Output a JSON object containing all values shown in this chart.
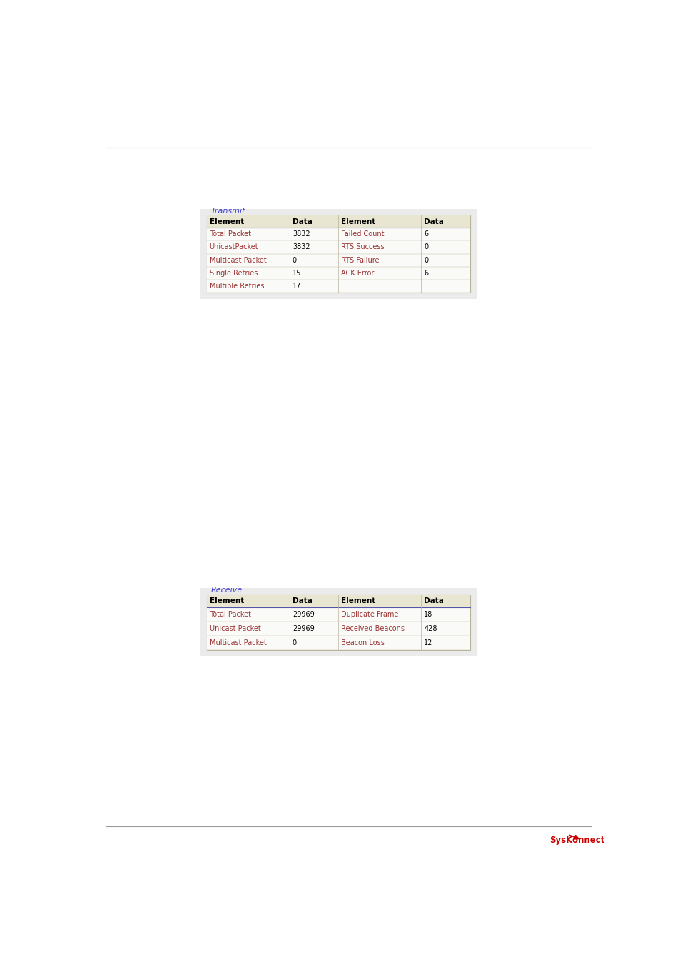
{
  "page_bg": "#ffffff",
  "panel_bg": "#ebebeb",
  "table_header_bg": "#e8e5d0",
  "table_row_bg": "#fafaf8",
  "border_color": "#b8b49a",
  "header_line_color": "#5555aa",
  "group_label_color": "#4444cc",
  "element_color": "#993333",
  "data_color": "#000000",
  "top_line_color": "#aaaaaa",
  "bottom_line_color": "#999999",
  "logo_color": "#cc0000",
  "transmit_title": "Transmit",
  "transmit_left_elements": [
    "Total Packet",
    "UnicastPacket",
    "Multicast Packet",
    "Single Retries",
    "Multiple Retries"
  ],
  "transmit_left_data": [
    "3832",
    "3832",
    "0",
    "15",
    "17"
  ],
  "transmit_right_elements": [
    "Failed Count",
    "RTS Success",
    "RTS Failure",
    "ACK Error"
  ],
  "transmit_right_data": [
    "6",
    "0",
    "0",
    "6"
  ],
  "receive_title": "Receive",
  "receive_left_elements": [
    "Total Packet",
    "Unicast Packet",
    "Multicast Packet"
  ],
  "receive_left_data": [
    "29969",
    "29969",
    "0"
  ],
  "receive_right_elements": [
    "Duplicate Frame",
    "Received Beacons",
    "Beacon Loss"
  ],
  "receive_right_data": [
    "18",
    "428",
    "12"
  ],
  "col_header": [
    "Element",
    "Data",
    "Element",
    "Data"
  ],
  "font_size_label": 7.0,
  "font_size_header": 7.5,
  "font_size_title": 8.0
}
